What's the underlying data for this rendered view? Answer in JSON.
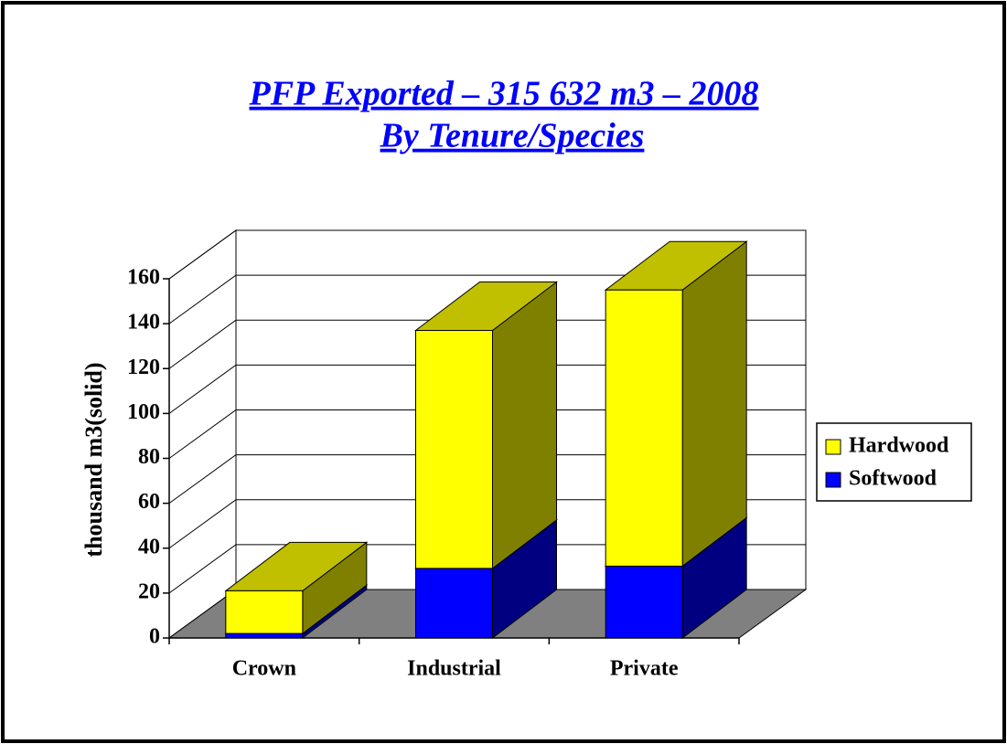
{
  "chart_data": {
    "type": "bar3d_stacked",
    "title": "PFP Exported – 315 632 m3 – 2008",
    "subtitle": "By Tenure/Species",
    "y_label": "thousand m3(solid)",
    "categories": [
      "Crown",
      "Industrial",
      "Private"
    ],
    "series": [
      {
        "name": "Softwood",
        "color": "#0000ff",
        "top_color": "#0000c0",
        "side_color": "#000080",
        "values": [
          2,
          31,
          32
        ]
      },
      {
        "name": "Hardwood",
        "color": "#ffff00",
        "top_color": "#c0c000",
        "side_color": "#808000",
        "values": [
          19,
          106,
          123
        ]
      }
    ],
    "ylim": [
      0,
      160
    ],
    "yticks": [
      0,
      20,
      40,
      60,
      80,
      100,
      120,
      140,
      160
    ],
    "grid": true,
    "legend": "right"
  }
}
